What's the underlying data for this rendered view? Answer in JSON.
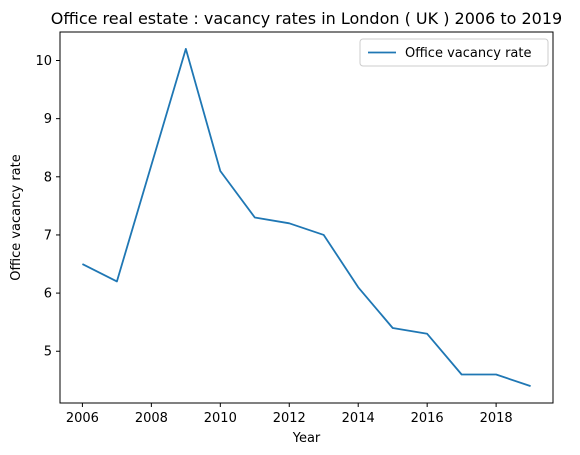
{
  "chart_data": {
    "type": "line",
    "title": "Office real estate : vacancy rates in London ( UK ) 2006 to 2019",
    "xlabel": "Year",
    "ylabel": "Office vacancy rate",
    "x": [
      2006,
      2007,
      2008,
      2009,
      2010,
      2011,
      2012,
      2013,
      2014,
      2015,
      2016,
      2017,
      2018,
      2019
    ],
    "series": [
      {
        "name": "Office vacancy rate",
        "values": [
          6.5,
          6.2,
          8.2,
          10.2,
          8.1,
          7.3,
          7.2,
          7.0,
          6.1,
          5.4,
          5.3,
          4.6,
          4.6,
          4.4
        ],
        "color": "#1f77b4"
      }
    ],
    "xticks": [
      2006,
      2008,
      2010,
      2012,
      2014,
      2016,
      2018
    ],
    "yticks": [
      5,
      6,
      7,
      8,
      9,
      10
    ],
    "xlim": [
      2005.35,
      2019.65
    ],
    "ylim": [
      4.11,
      10.49
    ],
    "grid": false,
    "legend_position": "upper-right"
  }
}
